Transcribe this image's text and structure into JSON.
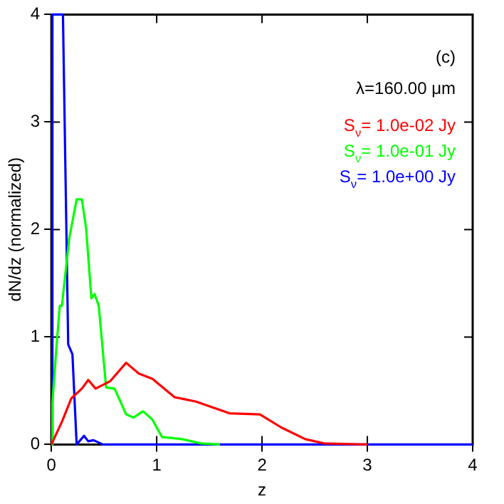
{
  "chart_data": {
    "type": "line",
    "xlabel": "z",
    "ylabel": "dN/dz (normalized)",
    "annotations": [
      "(c)",
      "λ=160.00 μm"
    ],
    "xlim": [
      0,
      4
    ],
    "ylim": [
      0,
      4
    ],
    "xticks": [
      0,
      1,
      2,
      3,
      4
    ],
    "yticks": [
      0,
      1,
      2,
      3,
      4
    ],
    "legend": "top right",
    "marker": "none",
    "line_style": "solid",
    "series": [
      {
        "name": "S$_{ν}$= 1.0e-02 Jy",
        "color": "#ff0000",
        "x": [
          0,
          0.1,
          0.19,
          0.29,
          0.35,
          0.42,
          0.56,
          0.71,
          0.83,
          0.96,
          1.17,
          1.37,
          1.69,
          1.98,
          2.18,
          2.41,
          2.59,
          3.0
        ],
        "values": [
          0,
          0.21,
          0.43,
          0.52,
          0.6,
          0.52,
          0.59,
          0.76,
          0.66,
          0.61,
          0.44,
          0.4,
          0.29,
          0.28,
          0.16,
          0.05,
          0.01,
          0
        ]
      },
      {
        "name": "S$_{ν}$= 1.0e-01 Jy",
        "color": "#00ff00",
        "x": [
          0,
          0.01,
          0.05,
          0.08,
          0.1,
          0.17,
          0.24,
          0.29,
          0.33,
          0.38,
          0.41,
          0.45,
          0.52,
          0.6,
          0.71,
          0.78,
          0.87,
          0.96,
          1.05,
          1.24,
          1.42,
          1.6
        ],
        "values": [
          0,
          0.39,
          0.93,
          1.29,
          1.29,
          1.92,
          2.28,
          2.28,
          2.01,
          1.36,
          1.4,
          1.29,
          0.53,
          0.52,
          0.28,
          0.25,
          0.31,
          0.23,
          0.07,
          0.05,
          0.01,
          0
        ]
      },
      {
        "name": "S$_{ν}$= 1.0e+00 Jy",
        "color": "#0000ff",
        "x": [
          0.005,
          0.01,
          0.11,
          0.16,
          0.2,
          0.24,
          0.31,
          0.35,
          0.4,
          0.49,
          4.0
        ],
        "values": [
          0,
          4.0,
          4.0,
          0.93,
          0.84,
          0,
          0.08,
          0.03,
          0.04,
          0,
          0
        ]
      }
    ]
  }
}
